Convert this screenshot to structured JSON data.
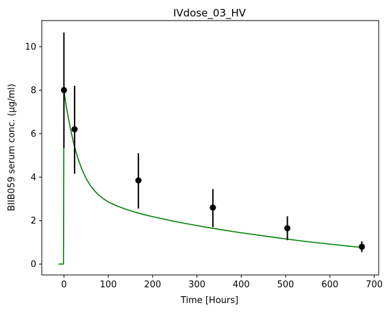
{
  "chart_data": {
    "type": "scatter",
    "title": "IVdose_03_HV",
    "xlabel": "Time [Hours]",
    "ylabel": "BIIB059 serum conc. (µg/ml)",
    "xlim": [
      -50,
      710
    ],
    "ylim": [
      -0.5,
      11.2
    ],
    "xticks": [
      0,
      100,
      200,
      300,
      400,
      500,
      600,
      700
    ],
    "yticks": [
      0,
      2,
      4,
      6,
      8,
      10
    ],
    "grid": false,
    "observed": {
      "color": "#000000",
      "points": [
        {
          "x": 0,
          "y": 8.0,
          "yerr_low": 5.35,
          "yerr_high": 10.65
        },
        {
          "x": 24,
          "y": 6.2,
          "yerr_low": 4.15,
          "yerr_high": 8.2
        },
        {
          "x": 168,
          "y": 3.85,
          "yerr_low": 2.55,
          "yerr_high": 5.1
        },
        {
          "x": 336,
          "y": 2.6,
          "yerr_low": 1.7,
          "yerr_high": 3.45
        },
        {
          "x": 504,
          "y": 1.65,
          "yerr_low": 1.1,
          "yerr_high": 2.2
        },
        {
          "x": 672,
          "y": 0.8,
          "yerr_low": 0.55,
          "yerr_high": 1.05
        }
      ]
    },
    "model": {
      "color": "#008000",
      "x": [
        -12,
        -1,
        0,
        1,
        5,
        10,
        15,
        20,
        25,
        30,
        40,
        50,
        60,
        70,
        80,
        90,
        100,
        120,
        140,
        160,
        180,
        200,
        250,
        300,
        350,
        400,
        450,
        500,
        550,
        600,
        650,
        672
      ],
      "y": [
        0,
        0,
        8.0,
        7.85,
        7.3,
        6.72,
        6.2,
        5.73,
        5.32,
        4.96,
        4.38,
        3.94,
        3.6,
        3.35,
        3.15,
        2.99,
        2.86,
        2.67,
        2.52,
        2.39,
        2.28,
        2.18,
        1.96,
        1.77,
        1.6,
        1.44,
        1.3,
        1.16,
        1.03,
        0.92,
        0.81,
        0.77
      ]
    }
  }
}
